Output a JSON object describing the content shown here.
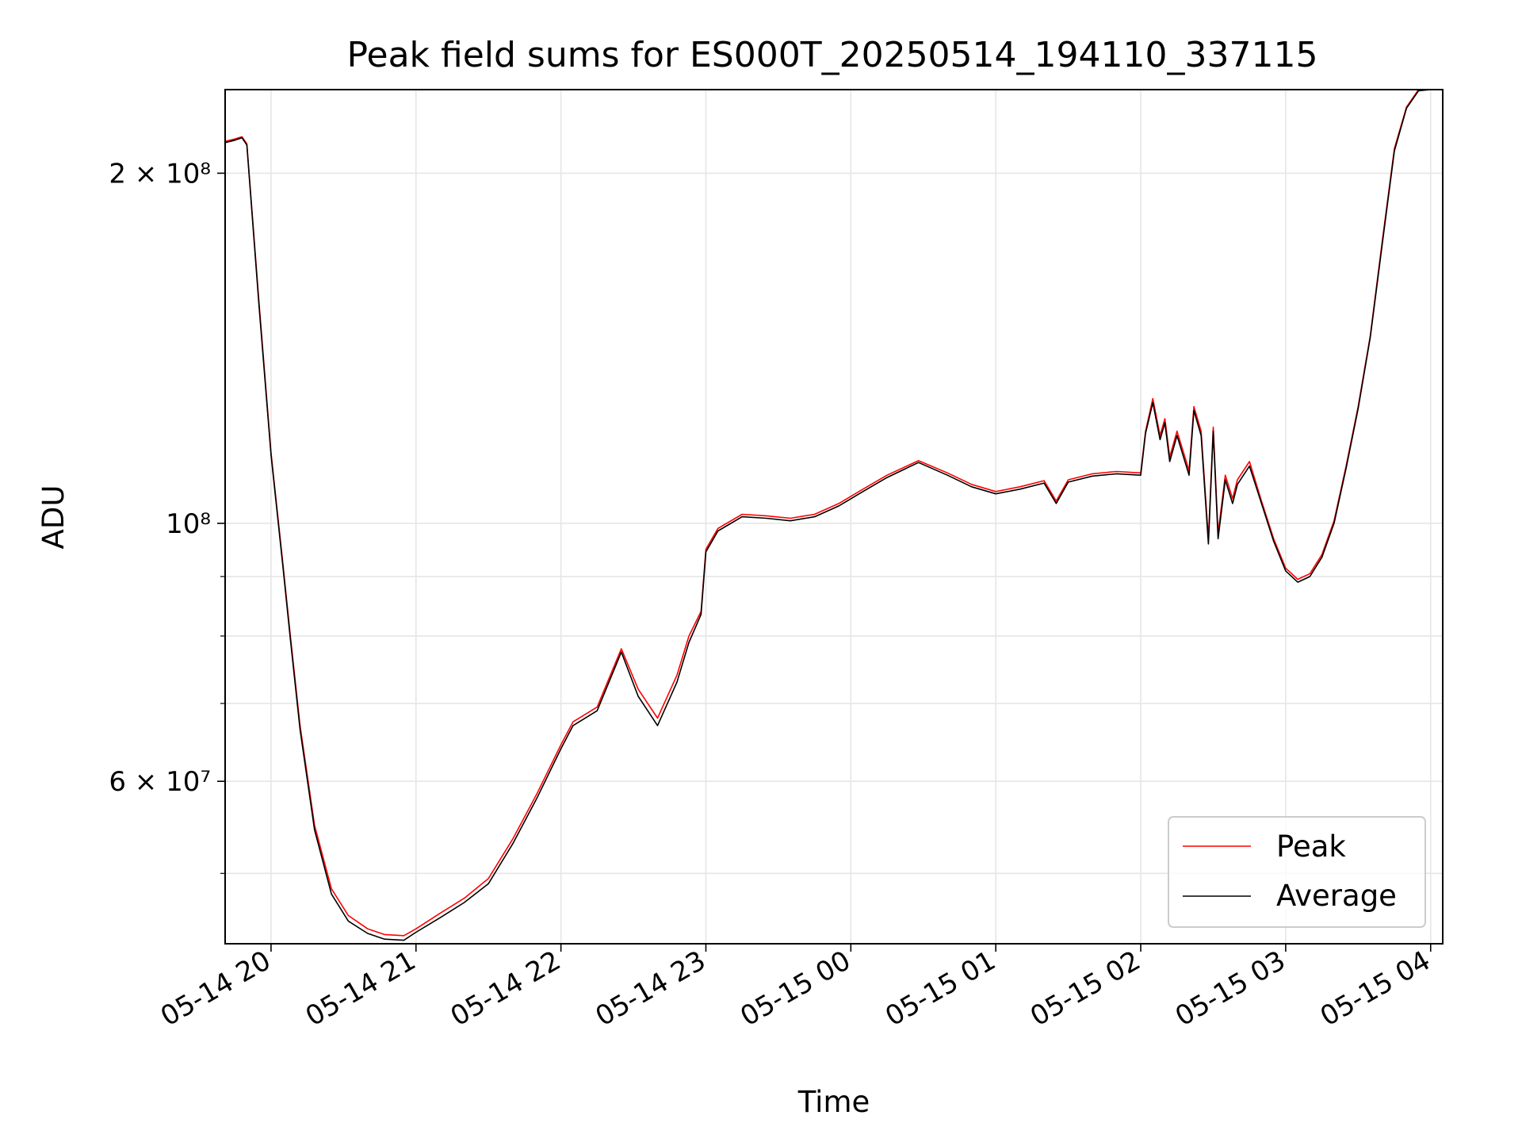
{
  "chart_data": {
    "type": "line",
    "title": "Peak field sums for ES000T_20250514_194110_337115",
    "xlabel": "Time",
    "ylabel": "ADU",
    "yscale": "log",
    "xlim": [
      "2025-05-14 19:41",
      "2025-05-15 04:05"
    ],
    "ylim": [
      43500000,
      236000000
    ],
    "grid": true,
    "legend": "lower right",
    "x_ticks": [
      "05-14 20",
      "05-14 21",
      "05-14 22",
      "05-14 23",
      "05-15 00",
      "05-15 01",
      "05-15 02",
      "05-15 03",
      "05-15 04"
    ],
    "y_ticks": [
      {
        "value": 200000000,
        "label": "2 × 10⁸"
      },
      {
        "value": 100000000,
        "label": "10⁸"
      },
      {
        "value": 60000000,
        "label": "6 × 10⁷"
      }
    ],
    "series": [
      {
        "name": "Peak",
        "color": "#ff0000",
        "x": [
          "2025-05-14 19:41",
          "2025-05-14 19:45",
          "2025-05-14 19:48",
          "2025-05-14 19:50",
          "2025-05-14 19:55",
          "2025-05-14 20:00",
          "2025-05-14 20:05",
          "2025-05-14 20:08",
          "2025-05-14 20:12",
          "2025-05-14 20:18",
          "2025-05-14 20:25",
          "2025-05-14 20:32",
          "2025-05-14 20:40",
          "2025-05-14 20:47",
          "2025-05-14 20:55",
          "2025-05-14 21:00",
          "2025-05-14 21:10",
          "2025-05-14 21:20",
          "2025-05-14 21:30",
          "2025-05-14 21:40",
          "2025-05-14 21:50",
          "2025-05-14 22:00",
          "2025-05-14 22:05",
          "2025-05-14 22:15",
          "2025-05-14 22:25",
          "2025-05-14 22:32",
          "2025-05-14 22:40",
          "2025-05-14 22:48",
          "2025-05-14 22:53",
          "2025-05-14 22:58",
          "2025-05-14 23:00",
          "2025-05-14 23:05",
          "2025-05-14 23:15",
          "2025-05-14 23:25",
          "2025-05-14 23:35",
          "2025-05-14 23:45",
          "2025-05-14 23:55",
          "2025-05-15 00:05",
          "2025-05-15 00:15",
          "2025-05-15 00:28",
          "2025-05-15 00:40",
          "2025-05-15 00:50",
          "2025-05-15 01:00",
          "2025-05-15 01:10",
          "2025-05-15 01:20",
          "2025-05-15 01:25",
          "2025-05-15 01:30",
          "2025-05-15 01:40",
          "2025-05-15 01:50",
          "2025-05-15 02:00",
          "2025-05-15 02:02",
          "2025-05-15 02:05",
          "2025-05-15 02:08",
          "2025-05-15 02:10",
          "2025-05-15 02:12",
          "2025-05-15 02:15",
          "2025-05-15 02:20",
          "2025-05-15 02:22",
          "2025-05-15 02:25",
          "2025-05-15 02:28",
          "2025-05-15 02:30",
          "2025-05-15 02:32",
          "2025-05-15 02:35",
          "2025-05-15 02:38",
          "2025-05-15 02:40",
          "2025-05-15 02:45",
          "2025-05-15 02:50",
          "2025-05-15 02:55",
          "2025-05-15 03:00",
          "2025-05-15 03:05",
          "2025-05-15 03:10",
          "2025-05-15 03:15",
          "2025-05-15 03:20",
          "2025-05-15 03:25",
          "2025-05-15 03:30",
          "2025-05-15 03:35",
          "2025-05-15 03:40",
          "2025-05-15 03:45",
          "2025-05-15 03:50",
          "2025-05-15 03:55",
          "2025-05-15 04:00",
          "2025-05-15 04:05"
        ],
        "y": [
          213000000,
          214000000,
          215000000,
          212000000,
          155000000,
          115000000,
          92000000,
          80000000,
          67000000,
          55000000,
          48500000,
          46000000,
          44800000,
          44300000,
          44200000,
          44800000,
          46200000,
          47600000,
          49500000,
          53500000,
          58500000,
          64500000,
          67500000,
          69500000,
          78000000,
          72000000,
          68000000,
          74000000,
          80000000,
          84000000,
          95000000,
          99000000,
          101800000,
          101500000,
          101000000,
          101800000,
          104000000,
          107000000,
          110000000,
          113200000,
          110500000,
          108000000,
          106500000,
          107500000,
          108800000,
          104500000,
          109000000,
          110300000,
          110800000,
          110500000,
          120000000,
          128000000,
          119000000,
          123000000,
          114000000,
          120000000,
          111000000,
          126000000,
          120000000,
          97000000,
          121000000,
          98000000,
          110000000,
          105000000,
          109000000,
          113000000,
          104500000,
          97000000,
          91500000,
          89500000,
          90500000,
          94000000,
          100500000,
          112000000,
          126000000,
          145000000,
          175000000,
          210000000,
          228000000,
          236000000,
          236000000,
          236000000
        ]
      },
      {
        "name": "Average",
        "color": "#000000",
        "x": [
          "2025-05-14 19:41",
          "2025-05-14 19:45",
          "2025-05-14 19:48",
          "2025-05-14 19:50",
          "2025-05-14 19:55",
          "2025-05-14 20:00",
          "2025-05-14 20:05",
          "2025-05-14 20:08",
          "2025-05-14 20:12",
          "2025-05-14 20:18",
          "2025-05-14 20:25",
          "2025-05-14 20:32",
          "2025-05-14 20:40",
          "2025-05-14 20:47",
          "2025-05-14 20:55",
          "2025-05-14 21:00",
          "2025-05-14 21:10",
          "2025-05-14 21:20",
          "2025-05-14 21:30",
          "2025-05-14 21:40",
          "2025-05-14 21:50",
          "2025-05-14 22:00",
          "2025-05-14 22:05",
          "2025-05-14 22:15",
          "2025-05-14 22:25",
          "2025-05-14 22:32",
          "2025-05-14 22:40",
          "2025-05-14 22:48",
          "2025-05-14 22:53",
          "2025-05-14 22:58",
          "2025-05-14 23:00",
          "2025-05-14 23:05",
          "2025-05-14 23:15",
          "2025-05-14 23:25",
          "2025-05-14 23:35",
          "2025-05-14 23:45",
          "2025-05-14 23:55",
          "2025-05-15 00:05",
          "2025-05-15 00:15",
          "2025-05-15 00:28",
          "2025-05-15 00:40",
          "2025-05-15 00:50",
          "2025-05-15 01:00",
          "2025-05-15 01:10",
          "2025-05-15 01:20",
          "2025-05-15 01:25",
          "2025-05-15 01:30",
          "2025-05-15 01:40",
          "2025-05-15 01:50",
          "2025-05-15 02:00",
          "2025-05-15 02:02",
          "2025-05-15 02:05",
          "2025-05-15 02:08",
          "2025-05-15 02:10",
          "2025-05-15 02:12",
          "2025-05-15 02:15",
          "2025-05-15 02:20",
          "2025-05-15 02:22",
          "2025-05-15 02:25",
          "2025-05-15 02:28",
          "2025-05-15 02:30",
          "2025-05-15 02:32",
          "2025-05-15 02:35",
          "2025-05-15 02:38",
          "2025-05-15 02:40",
          "2025-05-15 02:45",
          "2025-05-15 02:50",
          "2025-05-15 02:55",
          "2025-05-15 03:00",
          "2025-05-15 03:05",
          "2025-05-15 03:10",
          "2025-05-15 03:15",
          "2025-05-15 03:20",
          "2025-05-15 03:25",
          "2025-05-15 03:30",
          "2025-05-15 03:35",
          "2025-05-15 03:40",
          "2025-05-15 03:45",
          "2025-05-15 03:50",
          "2025-05-15 03:55",
          "2025-05-15 04:00",
          "2025-05-15 04:05"
        ],
        "y": [
          212500000,
          213500000,
          214500000,
          211500000,
          154000000,
          114500000,
          91500000,
          79500000,
          66500000,
          54500000,
          48000000,
          45500000,
          44400000,
          43900000,
          43800000,
          44500000,
          45800000,
          47200000,
          49000000,
          53000000,
          58000000,
          64000000,
          67000000,
          69000000,
          77500000,
          71000000,
          67000000,
          73000000,
          79000000,
          83500000,
          94500000,
          98500000,
          101300000,
          101000000,
          100500000,
          101300000,
          103500000,
          106500000,
          109500000,
          112800000,
          110000000,
          107500000,
          106000000,
          107000000,
          108300000,
          104000000,
          108500000,
          109800000,
          110300000,
          110000000,
          119500000,
          127000000,
          118000000,
          122000000,
          113000000,
          119000000,
          110000000,
          125000000,
          119000000,
          96000000,
          120000000,
          97000000,
          109000000,
          104000000,
          108000000,
          112000000,
          104000000,
          96500000,
          91000000,
          89000000,
          90000000,
          93500000,
          100000000,
          111500000,
          125500000,
          144500000,
          174000000,
          209000000,
          227500000,
          235500000,
          236000000,
          236000000
        ]
      }
    ]
  }
}
